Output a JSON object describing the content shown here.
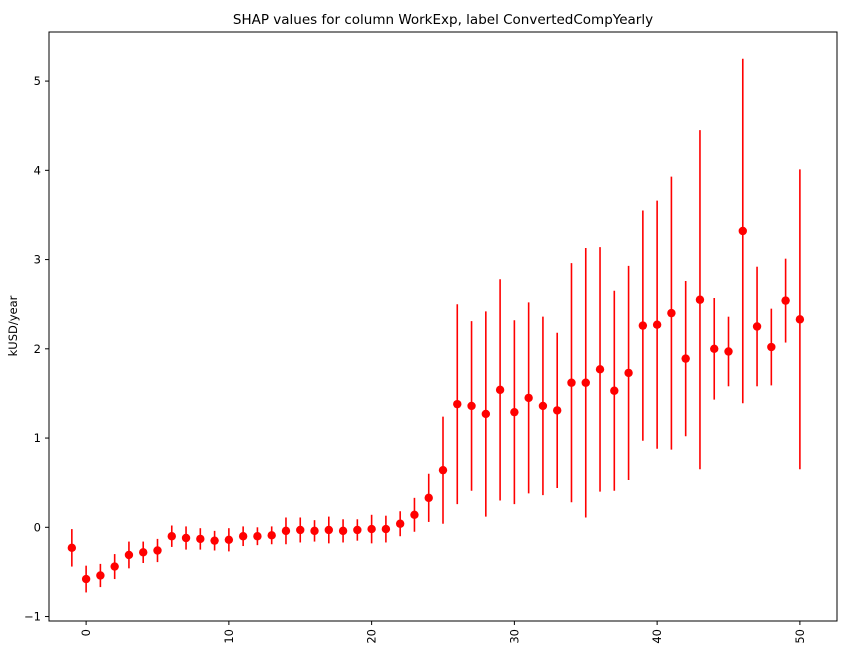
{
  "chart_data": {
    "type": "scatter",
    "title": "SHAP values for column WorkExp, label ConvertedCompYearly",
    "xlabel": "",
    "ylabel": "kUSD/year",
    "xlim": [
      -2.6,
      52.6
    ],
    "ylim": [
      -1.05,
      5.55
    ],
    "xticks": [
      0,
      10,
      20,
      30,
      40,
      50
    ],
    "yticks": [
      -1,
      0,
      1,
      2,
      3,
      4,
      5
    ],
    "grid": false,
    "marker_color": "#ff0000",
    "series": [
      {
        "x": [
          -1,
          0,
          1,
          2,
          3,
          4,
          5,
          6,
          7,
          8,
          9,
          10,
          11,
          12,
          13,
          14,
          15,
          16,
          17,
          18,
          19,
          20,
          21,
          22,
          23,
          24,
          25,
          26,
          27,
          28,
          29,
          30,
          31,
          32,
          33,
          34,
          35,
          36,
          37,
          38,
          39,
          40,
          41,
          42,
          43,
          44,
          45,
          46,
          47,
          48,
          49,
          50
        ],
        "y": [
          -0.23,
          -0.58,
          -0.54,
          -0.44,
          -0.31,
          -0.28,
          -0.26,
          -0.1,
          -0.12,
          -0.13,
          -0.15,
          -0.14,
          -0.1,
          -0.1,
          -0.09,
          -0.04,
          -0.03,
          -0.04,
          -0.03,
          -0.04,
          -0.03,
          -0.02,
          -0.02,
          0.04,
          0.14,
          0.33,
          0.64,
          1.38,
          1.36,
          1.27,
          1.54,
          1.29,
          1.45,
          1.36,
          1.31,
          1.62,
          1.62,
          1.77,
          1.53,
          1.73,
          2.26,
          2.27,
          2.4,
          1.89,
          2.55,
          2.0,
          1.97,
          3.32,
          2.25,
          2.02,
          2.54,
          2.33
        ],
        "err": [
          0.21,
          0.15,
          0.13,
          0.14,
          0.15,
          0.12,
          0.13,
          0.12,
          0.13,
          0.12,
          0.11,
          0.13,
          0.11,
          0.1,
          0.1,
          0.15,
          0.14,
          0.12,
          0.15,
          0.13,
          0.12,
          0.16,
          0.15,
          0.14,
          0.19,
          0.27,
          0.6,
          1.12,
          0.95,
          1.15,
          1.24,
          1.03,
          1.07,
          1.0,
          0.87,
          1.34,
          1.51,
          1.37,
          1.12,
          1.2,
          1.29,
          1.39,
          1.53,
          0.87,
          1.9,
          0.57,
          0.39,
          1.93,
          0.67,
          0.43,
          0.47,
          1.68
        ]
      }
    ]
  }
}
